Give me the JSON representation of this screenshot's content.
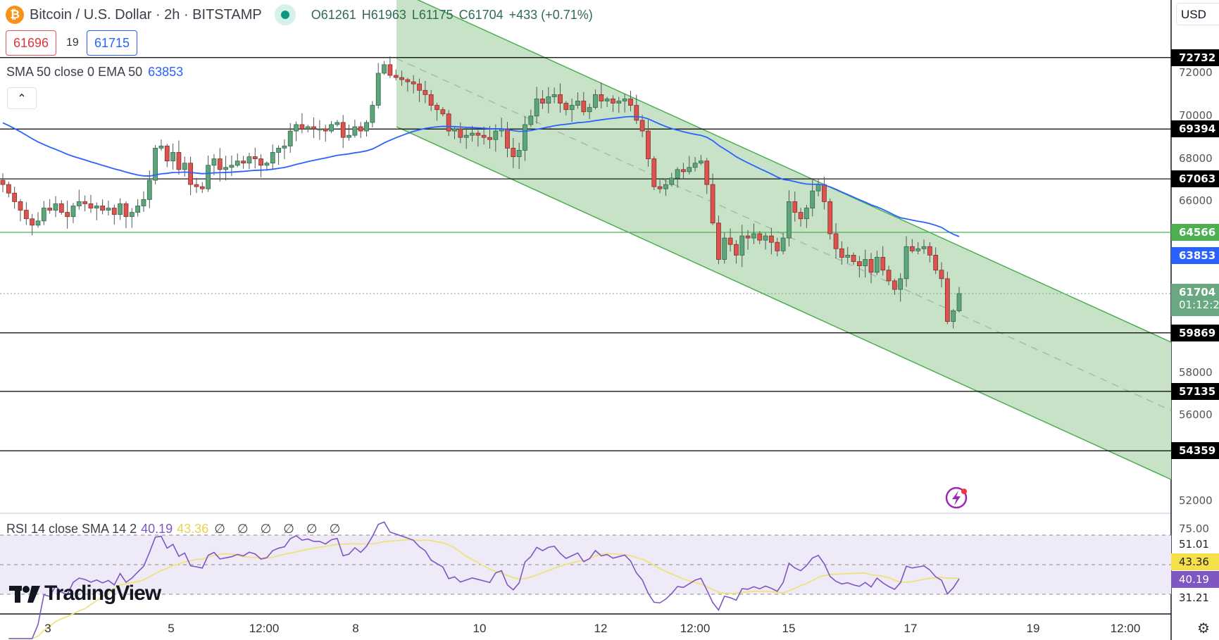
{
  "header": {
    "symbol_icon": "bitcoin-icon",
    "title": "Bitcoin / U.S. Dollar · 2h · BITSTAMP",
    "open": "O61261",
    "high": "H61963",
    "low": "L61175",
    "close": "C61704",
    "change": "+433 (+0.71%)"
  },
  "trade": {
    "sell": "61696",
    "spread": "19",
    "buy": "61715"
  },
  "ma_legend": {
    "label": "SMA 50 close 0 EMA 50",
    "value": "63853"
  },
  "rsi_legend": {
    "label": "RSI 14 close SMA 14 2",
    "rsi": "40.19",
    "sma": "43.36",
    "extra": "∅ ∅ ∅ ∅ ∅ ∅"
  },
  "currency": "USD",
  "logo": "TradingView",
  "chart_data": {
    "type": "candlestick",
    "timeframe": "2h",
    "closes": [
      66800,
      66400,
      66000,
      65600,
      65200,
      64900,
      65100,
      65700,
      65600,
      65900,
      65500,
      65300,
      65800,
      66000,
      65900,
      65700,
      65800,
      65600,
      65700,
      65400,
      65900,
      65300,
      65500,
      65800,
      66100,
      67000,
      68500,
      68600,
      67900,
      68300,
      67500,
      67800,
      66800,
      66700,
      66600,
      67700,
      68000,
      67500,
      67600,
      67700,
      67900,
      67800,
      68100,
      68000,
      67700,
      67800,
      68300,
      68500,
      68600,
      69300,
      69600,
      69400,
      69500,
      69400,
      69400,
      69300,
      69600,
      69700,
      69000,
      69100,
      69500,
      69300,
      69700,
      70500,
      72000,
      72400,
      71900,
      71800,
      71700,
      71600,
      71500,
      71200,
      71000,
      70500,
      70300,
      70100,
      69300,
      69400,
      69000,
      69100,
      69200,
      69100,
      69000,
      68900,
      69300,
      69400,
      68500,
      68100,
      68400,
      69600,
      70000,
      70800,
      70600,
      70900,
      71000,
      70600,
      70300,
      70500,
      70700,
      70200,
      70400,
      71000,
      70700,
      70800,
      70600,
      70700,
      70800,
      70500,
      69800,
      69300,
      68000,
      66700,
      66600,
      66800,
      67100,
      67500,
      67400,
      67600,
      67800,
      67900,
      66800,
      65000,
      63300,
      64300,
      64000,
      63500,
      64400,
      64300,
      64500,
      64200,
      64400,
      64100,
      63700,
      64300,
      66000,
      65500,
      65200,
      65700,
      66500,
      66800,
      66000,
      64500,
      63800,
      63400,
      63500,
      63200,
      63000,
      63300,
      62700,
      63400,
      62800,
      62300,
      61900,
      62400,
      63900,
      63700,
      63800,
      63900,
      63500,
      62800,
      62400,
      60400,
      60900,
      61704
    ],
    "price_ticks": [
      72000,
      70000,
      68000,
      66000,
      58000,
      56000,
      52000
    ],
    "time_ticks": [
      "3",
      "5",
      "12:00",
      "8",
      "10",
      "12",
      "12:00",
      "15",
      "17",
      "19",
      "12:00"
    ],
    "levels": [
      {
        "price": 72732,
        "label": "72732",
        "color": "#000000"
      },
      {
        "price": 69394,
        "label": "69394",
        "color": "#000000"
      },
      {
        "price": 67063,
        "label": "67063",
        "color": "#000000"
      },
      {
        "price": 64566,
        "label": "64566",
        "color": "#4caf50"
      },
      {
        "price": 59869,
        "label": "59869",
        "color": "#000000"
      },
      {
        "price": 57135,
        "label": "57135",
        "color": "#000000"
      },
      {
        "price": 54359,
        "label": "54359",
        "color": "#000000"
      }
    ],
    "ema_label": {
      "value": "63853",
      "color": "#2962ff"
    },
    "last_price": {
      "value": "61704",
      "countdown": "01:12:2",
      "color": "#6aa882"
    },
    "rsi_scale": {
      "top": "75.00",
      "upper": "51.01",
      "sma": "43.36",
      "rsi": "40.19",
      "lower": "31.21"
    },
    "rsi_bands": [
      70,
      50,
      30
    ],
    "colors": {
      "up": "#5fa57c",
      "down": "#d9534f",
      "ema": "#2962ff",
      "rsi": "#7e57c2",
      "rsi_sma": "#f0e27a",
      "channel": "#4caf50"
    }
  }
}
